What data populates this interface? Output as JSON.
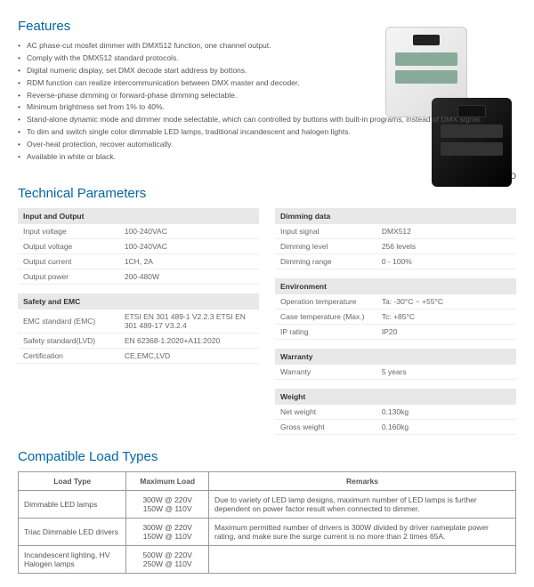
{
  "features": {
    "title": "Features",
    "items": [
      "AC phase-cut mosfet dimmer with DMX512 function, one channel output.",
      "Comply with the DMX512 standard protocols.",
      "Digital numeric display, set DMX decode start address by bottons.",
      "RDM function can realize intercommunication between DMX master and decoder.",
      "Reverse-phase dimming or forward-phase dimming selectable.",
      "Minimum brightness set from 1% to 40%.",
      "Stand-alone dynamic mode and dimmer mode selectable, which can controlled by buttons with built-in programs, instead of DMX signal.",
      "To dim and switch single color dimmable LED lamps, traditional incandescent and halogen lights.",
      "Over-heat protection, recover automatically.",
      "Available in white or black."
    ]
  },
  "cert": "☼ C€ RoHS (emc) LVD",
  "tech": {
    "title": "Technical Parameters"
  },
  "io": {
    "h": "Input and Output",
    "r": [
      [
        "Input voltage",
        "100-240VAC"
      ],
      [
        "Output voltage",
        "100-240VAC"
      ],
      [
        "Output current",
        "1CH, 2A"
      ],
      [
        "Output power",
        "200-480W"
      ]
    ]
  },
  "safe": {
    "h": "Safety and EMC",
    "r": [
      [
        "EMC standard (EMC)",
        "ETSI EN 301 489-1 V2.2.3 ETSI EN 301 489-17 V3.2.4"
      ],
      [
        "Safety standard(LVD)",
        "EN 62368-1:2020+A11:2020"
      ],
      [
        "Certification",
        "CE,EMC,LVD"
      ]
    ]
  },
  "dim": {
    "h": "Dimming data",
    "r": [
      [
        "Input signal",
        "DMX512"
      ],
      [
        "Dimming level",
        "256 levels"
      ],
      [
        "Dimming range",
        "0 - 100%"
      ]
    ]
  },
  "env": {
    "h": "Environment",
    "r": [
      [
        "Operation temperature",
        "Ta: -30°C ~ +55°C"
      ],
      [
        "Case temperature (Max.)",
        "Tc: +85°C"
      ],
      [
        "IP rating",
        "IP20"
      ]
    ]
  },
  "war": {
    "h": "Warranty",
    "r": [
      [
        "Warranty",
        "5 years"
      ]
    ]
  },
  "wt": {
    "h": "Weight",
    "r": [
      [
        "Net weight",
        "0.130kg"
      ],
      [
        "Gross weight",
        "0.160kg"
      ]
    ]
  },
  "compat": {
    "title": "Compatible Load Types",
    "h": [
      "Load Type",
      "Maximum Load",
      "Remarks"
    ],
    "r": [
      [
        "Dimmable LED lamps",
        "300W @ 220V 150W @ 110V",
        "Due to variety of LED lamp designs, maximum number of LED lamps is further dependent on power factor result when connected to dimmer."
      ],
      [
        "Triac Dimmable LED drivers",
        "300W @ 220V 150W @ 110V",
        "Maximum permitted number of drivers is 300W divided by driver nameplate power rating, and make sure the surge current is no more than 2 times 65A."
      ],
      [
        "Incandescent lighting, HV Halogen lamps",
        "500W @ 220V 250W @ 110V",
        ""
      ]
    ]
  }
}
